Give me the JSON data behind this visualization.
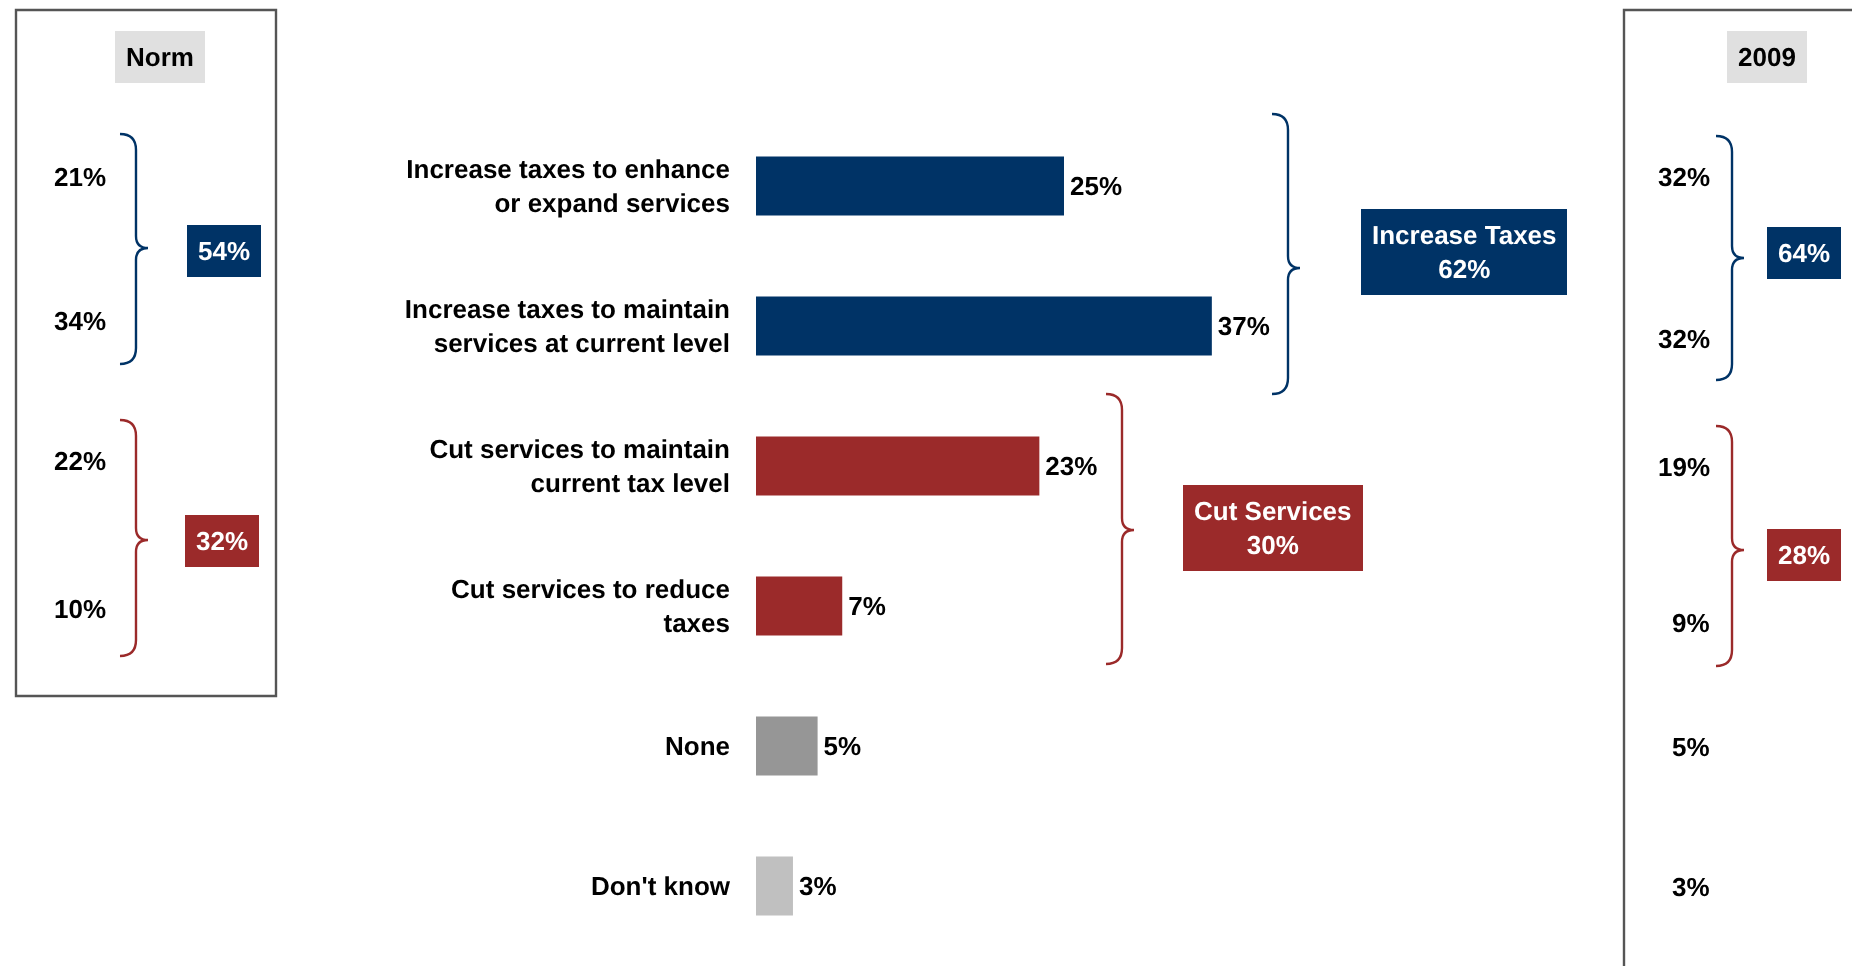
{
  "chart_data": {
    "type": "bar",
    "orientation": "horizontal",
    "categories": [
      "Increase taxes to enhance or expand services",
      "Increase taxes to maintain services at current level",
      "Cut services to maintain current tax level",
      "Cut services to reduce taxes",
      "None",
      "Don't know"
    ],
    "values": [
      25,
      37,
      23,
      7,
      5,
      3
    ],
    "colors": [
      "#003366",
      "#003366",
      "#9b2a2a",
      "#9b2a2a",
      "#969696",
      "#c0c0c0"
    ],
    "value_labels": [
      "25%",
      "37%",
      "23%",
      "7%",
      "5%",
      "3%"
    ],
    "legend": false,
    "annotations": [
      "Norm",
      "21%",
      "34%",
      "54%",
      "22%",
      "10%",
      "32%",
      "2009",
      "32%",
      "32%",
      "64%",
      "19%",
      "9%",
      "28%",
      "5%",
      "3%",
      "Increase Taxes\n62%",
      "Cut Services\n30%"
    ]
  }
}
